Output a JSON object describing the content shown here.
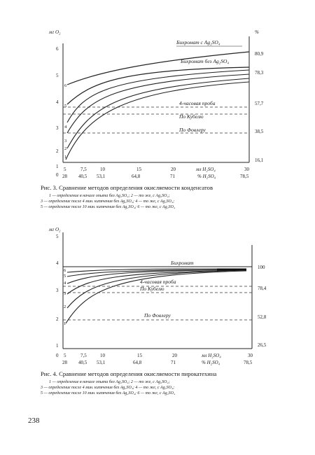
{
  "page_number": "238",
  "figure3": {
    "caption_title": "Рис. 3. Сравнение методов определения окисляемости конденсатов",
    "legend_lines": [
      "1 — определение в начале опыта без Ag₂SO₄; 2 — то же, с Ag₂SO₄;",
      "3 — определение после 4 мин. кипячения без Ag₂SO₄; 4 — то же, с Ag₂SO₄;",
      "5 — определение после 10 мин. кипячения без Ag₂SO₄; 6 — то же, с Ag₂SO₄"
    ],
    "y_unit": "мг O₂",
    "y_ticks": [
      "6",
      "5",
      "4",
      "3",
      "2",
      "1",
      "0"
    ],
    "right_unit": "%",
    "right_ticks": [
      "80,9",
      "78,3",
      "57,7",
      "38,5",
      "16,1"
    ],
    "x_ticks_top": [
      "5",
      "7,5",
      "10",
      "15",
      "20",
      "30"
    ],
    "x_ticks_bottom": [
      "28",
      "40,5",
      "53,1",
      "64,8",
      "71",
      "78,5"
    ],
    "x_label_top": "мл H₂SO₄",
    "x_label_bottom": "% H₂SO₄",
    "curve_numbers": [
      "1",
      "2",
      "3",
      "4",
      "5",
      "6"
    ],
    "labels": {
      "bichromate_with": "Бихромат с Ag₂SO₄",
      "bichromate_without": "Бихромат без Ag₂SO₄",
      "four_hour": "4-часовая проба",
      "kubel": "По Кубелю",
      "fowler": "По Фовлеру"
    }
  },
  "figure4": {
    "caption_title": "Рис. 4. Сравнение методов определения окисляемости пирокатехина",
    "legend_lines": [
      "1 — определение в начале опыта без Ag₂SO₄; 2 — то же, с Ag₂SO₄;",
      "3 — определение после 4 мин. кипячения без Ag₂SO₄; 4 — то же, с Ag₂SO₄;",
      "5 — определение после 10 мин. кипячения без Ag₂SO₄; 6 — то же, с Ag₂SO₄"
    ],
    "y_unit": "мг O₂",
    "y_ticks": [
      "5",
      "4",
      "3",
      "2",
      "1",
      "0"
    ],
    "right_ticks": [
      "100",
      "78,4",
      "52,8",
      "26,5"
    ],
    "x_ticks_top": [
      "5",
      "7,5",
      "10",
      "15",
      "20",
      "30"
    ],
    "x_ticks_bottom": [
      "28",
      "40,5",
      "53,1",
      "64,8",
      "71",
      "78,5"
    ],
    "x_label_top": "мл H₂SO₄",
    "x_label_bottom": "% H₂SO₄",
    "curve_numbers": [
      "6",
      "5",
      "4",
      "3",
      "2",
      "1"
    ],
    "labels": {
      "bichromate": "Бихромат",
      "four_hour": "4-часовая проба",
      "kubel": "По Кубелю",
      "fowler": "По Фовлеру"
    }
  },
  "chart_data": [
    {
      "type": "line",
      "title": "Рис. 3. Сравнение методов определения окисляемости конденсатов",
      "xlabel": "мл H₂SO₄",
      "ylabel": "мг O₂",
      "xlim": [
        0,
        30
      ],
      "ylim": [
        0,
        6.5
      ],
      "grid": false,
      "series": [
        {
          "name": "Бихромат с Ag₂SO₄",
          "x": [
            5,
            7.5,
            10,
            15,
            20,
            25,
            30
          ],
          "y": [
            4.9,
            5.05,
            5.2,
            5.4,
            5.55,
            5.65,
            5.75
          ]
        },
        {
          "name": "Бихромат без Ag₂SO₄",
          "x": [
            5,
            7.5,
            10,
            15,
            20,
            25,
            30
          ],
          "y": [
            4.4,
            4.6,
            4.8,
            5.1,
            5.2,
            5.25,
            5.3
          ]
        },
        {
          "name": "1",
          "x": [
            5,
            7.5,
            10,
            15,
            20,
            25,
            30
          ],
          "y": [
            1.0,
            2.2,
            3.0,
            3.7,
            3.95,
            4.02,
            4.05
          ]
        },
        {
          "name": "2",
          "x": [
            5,
            7.5,
            10,
            15,
            20,
            25,
            30
          ],
          "y": [
            1.4,
            2.7,
            3.4,
            3.95,
            4.1,
            4.15,
            4.2
          ]
        },
        {
          "name": "3",
          "x": [
            5,
            7.5,
            10,
            15,
            20,
            25,
            30
          ],
          "y": [
            1.9,
            3.2,
            3.8,
            4.3,
            4.4,
            4.45,
            4.45
          ]
        },
        {
          "name": "4",
          "x": [
            5,
            7.5,
            10,
            15,
            20,
            25,
            30
          ],
          "y": [
            2.6,
            3.6,
            4.1,
            4.5,
            4.6,
            4.6,
            4.6
          ]
        },
        {
          "name": "4-часовая проба",
          "x": [
            0,
            30
          ],
          "y": [
            2.95,
            2.95
          ]
        },
        {
          "name": "По Кубелю",
          "x": [
            0,
            30
          ],
          "y": [
            2.65,
            2.65
          ]
        },
        {
          "name": "По Фовлеру",
          "x": [
            0,
            30
          ],
          "y": [
            1.9,
            1.9
          ]
        }
      ]
    },
    {
      "type": "line",
      "title": "Рис. 4. Сравнение методов определения окисляемости пирокатехина",
      "xlabel": "мл H₂SO₄",
      "ylabel": "мг O₂",
      "xlim": [
        0,
        30
      ],
      "ylim": [
        0,
        5
      ],
      "grid": false,
      "series": [
        {
          "name": "Бихромат",
          "x": [
            0,
            30
          ],
          "y": [
            4.05,
            4.05
          ]
        },
        {
          "name": "4-часовая проба",
          "x": [
            0,
            30
          ],
          "y": [
            3.35,
            3.35
          ]
        },
        {
          "name": "По Кубелю",
          "x": [
            0,
            30
          ],
          "y": [
            3.0,
            3.0
          ]
        },
        {
          "name": "По Фовлеру",
          "x": [
            0,
            30
          ],
          "y": [
            2.0,
            2.0
          ]
        },
        {
          "name": "1",
          "x": [
            5,
            7.5,
            10,
            15,
            20,
            25,
            30
          ],
          "y": [
            2.0,
            2.8,
            3.35,
            3.75,
            3.8,
            3.82,
            3.85
          ]
        },
        {
          "name": "2",
          "x": [
            5,
            7.5,
            10,
            15,
            20,
            25,
            30
          ],
          "y": [
            2.3,
            3.05,
            3.5,
            3.8,
            3.85,
            3.87,
            3.9
          ]
        },
        {
          "name": "3",
          "x": [
            5,
            7.5,
            10,
            15,
            20,
            25,
            30
          ],
          "y": [
            2.7,
            3.3,
            3.6,
            3.85,
            3.9,
            3.9,
            3.9
          ]
        },
        {
          "name": "4",
          "x": [
            5,
            7.5,
            10,
            15,
            20,
            25,
            30
          ],
          "y": [
            3.1,
            3.5,
            3.7,
            3.88,
            3.92,
            3.92,
            3.92
          ]
        },
        {
          "name": "5",
          "x": [
            5,
            7.5,
            10,
            15,
            20,
            25,
            30
          ],
          "y": [
            3.4,
            3.65,
            3.8,
            3.9,
            3.93,
            3.94,
            3.95
          ]
        },
        {
          "name": "6",
          "x": [
            5,
            7.5,
            10,
            15,
            20,
            25,
            30
          ],
          "y": [
            3.6,
            3.78,
            3.88,
            3.93,
            3.95,
            3.96,
            3.97
          ]
        }
      ]
    }
  ]
}
